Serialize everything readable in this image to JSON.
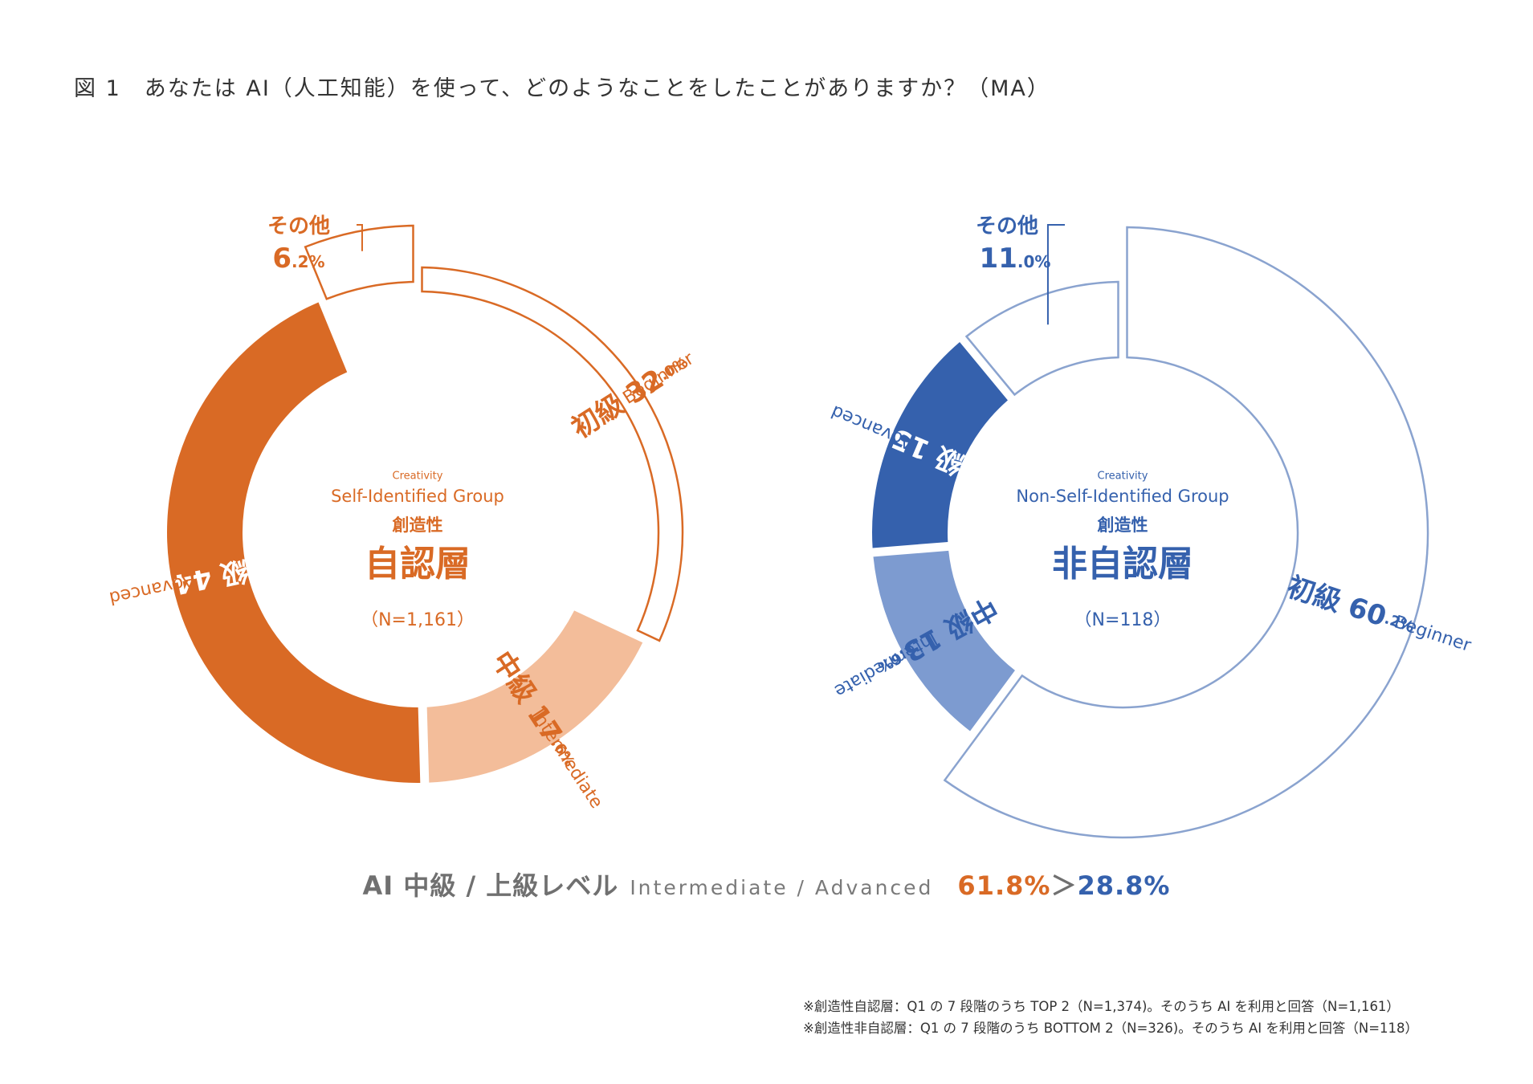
{
  "figure_title": "図 1　あなたは AI（人工知能）を使って、どのようなことをしたことがありますか？（MA）",
  "colors": {
    "orange": "#d96a25",
    "orange_light": "#f3bd9a",
    "blue": "#3561ad",
    "blue_light": "#7d9bd0",
    "blue_outline": "#8aa3cf",
    "text_gray": "#707070"
  },
  "chart_data": [
    {
      "type": "pie",
      "title": "自認層",
      "subtitle_small": "Creativity",
      "subtitle": "Self-Identified Group",
      "label_jp": "創造性",
      "n_label": "（N=1,161）",
      "segments": [
        {
          "key": "beginner",
          "name": "初級",
          "en": "Beginner",
          "value": 32.0,
          "int": "32",
          "dec": ".0%",
          "style": "outline"
        },
        {
          "key": "intermediate",
          "name": "中級",
          "en": "Intermediate",
          "value": 17.6,
          "int": "17",
          "dec": ".6%",
          "style": "light"
        },
        {
          "key": "advanced",
          "name": "上級",
          "en": "Advanced",
          "value": 44.3,
          "int": "44",
          "dec": ".3%",
          "style": "solid"
        },
        {
          "key": "other",
          "name": "その他",
          "en": "",
          "value": 6.2,
          "int": "6",
          "dec": ".2%",
          "style": "outline"
        }
      ]
    },
    {
      "type": "pie",
      "title": "非自認層",
      "subtitle_small": "Creativity",
      "subtitle": "Non-Self-Identified Group",
      "label_jp": "創造性",
      "n_label": "（N=118）",
      "segments": [
        {
          "key": "beginner",
          "name": "初級",
          "en": "Beginner",
          "value": 60.2,
          "int": "60",
          "dec": ".2%",
          "style": "outline"
        },
        {
          "key": "intermediate",
          "name": "中級",
          "en": "Intermediate",
          "value": 13.6,
          "int": "13",
          "dec": ".6%",
          "style": "light"
        },
        {
          "key": "advanced",
          "name": "上級",
          "en": "Advanced",
          "value": 15.3,
          "int": "15",
          "dec": ".3%",
          "style": "solid"
        },
        {
          "key": "other",
          "name": "その他",
          "en": "",
          "value": 11.0,
          "int": "11",
          "dec": ".0%",
          "style": "outline"
        }
      ]
    }
  ],
  "summary": {
    "label": "AI 中級 / 上級レベル",
    "label_en": "Intermediate / Advanced",
    "value_self": "61.8%",
    "comparator": "＞",
    "value_nonself": "28.8%"
  },
  "notes": [
    "※創造性自認層：Q1 の 7 段階のうち TOP 2（N=1,374)。そのうち AI を利用と回答（N=1,161）",
    "※創造性非自認層：Q1 の 7 段階のうち BOTTOM 2（N=326)。そのうち AI を利用と回答（N=118）"
  ]
}
